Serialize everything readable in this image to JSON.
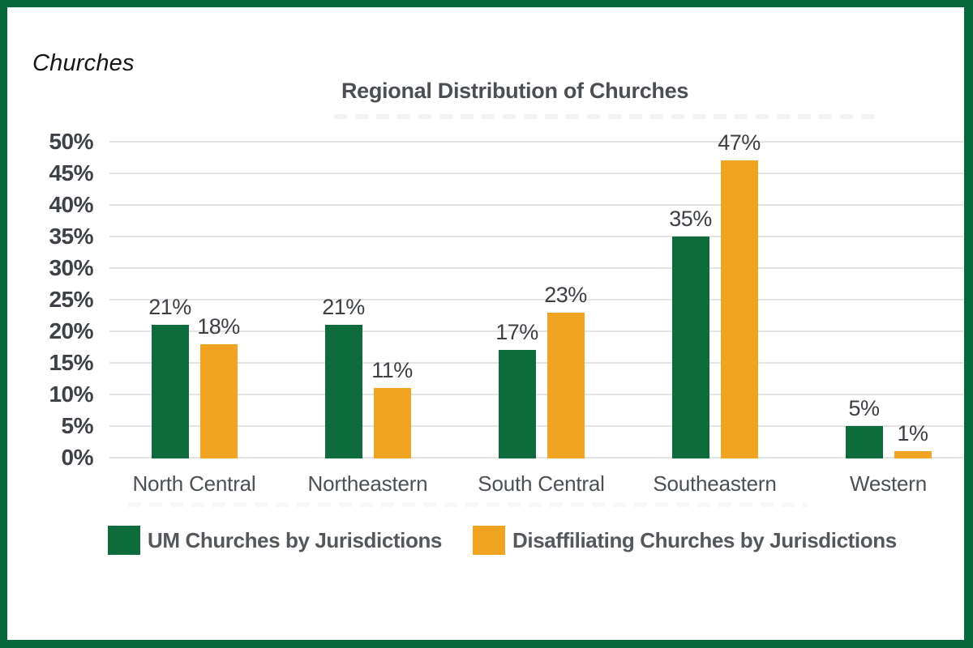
{
  "page": {
    "corner_label": "Churches"
  },
  "colors": {
    "frame": "#06693b",
    "background": "#ffffff",
    "gridline": "#e3e3e3",
    "axis_text": "#3e4247",
    "value_label_text": "#3c4044",
    "category_text": "#4b5055",
    "title_text": "#4b4f54",
    "legend_text": "#54585c",
    "series_green": "#0e6b3c",
    "series_orange": "#f0a422"
  },
  "chart_data": {
    "type": "bar",
    "title": "Regional Distribution of Churches",
    "categories": [
      "North Central",
      "Northeastern",
      "South Central",
      "Southeastern",
      "Western"
    ],
    "series": [
      {
        "name": "UM Churches by Jurisdictions",
        "color": "#0e6b3c",
        "values": [
          21,
          21,
          17,
          35,
          5
        ],
        "value_labels": [
          "21%",
          "21%",
          "17%",
          "35%",
          "5%"
        ]
      },
      {
        "name": "Disaffiliating Churches by Jurisdictions",
        "color": "#f0a422",
        "values": [
          18,
          11,
          23,
          47,
          1
        ],
        "value_labels": [
          "18%",
          "11%",
          "23%",
          "47%",
          "1%"
        ]
      }
    ],
    "y_axis": {
      "min": 0,
      "max": 50,
      "step": 5,
      "tick_labels": [
        "50%",
        "45%",
        "40%",
        "35%",
        "30%",
        "25%",
        "20%",
        "15%",
        "10%",
        "5%",
        "0%"
      ]
    },
    "x_axis_label": "",
    "y_axis_label": "",
    "grid": true,
    "legend_position": "bottom",
    "data_label_format": "percent"
  }
}
